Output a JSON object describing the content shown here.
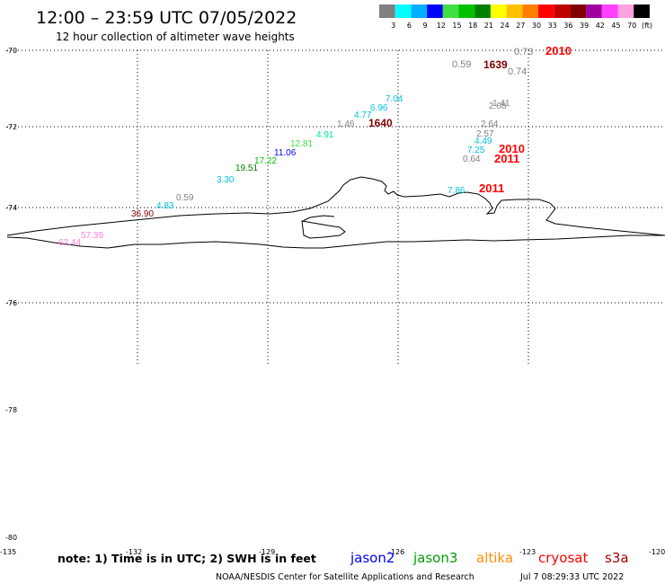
{
  "header": {
    "title": "12:00 – 23:59 UTC 07/05/2022",
    "subtitle": "12 hour collection of altimeter wave heights"
  },
  "colorbar": {
    "unit": "(ft)",
    "bins": [
      {
        "label": "3",
        "color": "#808080"
      },
      {
        "label": "6",
        "color": "#00ffff"
      },
      {
        "label": "9",
        "color": "#00b0ff"
      },
      {
        "label": "12",
        "color": "#0000ff"
      },
      {
        "label": "15",
        "color": "#40e040"
      },
      {
        "label": "18",
        "color": "#00c000"
      },
      {
        "label": "21",
        "color": "#008000"
      },
      {
        "label": "24",
        "color": "#ffff00"
      },
      {
        "label": "27",
        "color": "#ffc000"
      },
      {
        "label": "30",
        "color": "#ff8000"
      },
      {
        "label": "33",
        "color": "#ff0000"
      },
      {
        "label": "36",
        "color": "#c00000"
      },
      {
        "label": "39",
        "color": "#800000"
      },
      {
        "label": "42",
        "color": "#a000a0"
      },
      {
        "label": "45",
        "color": "#ff40ff"
      },
      {
        "label": "70",
        "color": "#ffa0e0"
      },
      {
        "label": "",
        "color": "#000000"
      }
    ]
  },
  "axes": {
    "lat_labels": [
      "-70",
      "-72",
      "-74",
      "-76",
      "-78",
      "-80"
    ],
    "lon_labels": [
      "-135",
      "-132",
      "-129",
      "-126",
      "-123",
      "-120"
    ]
  },
  "wave_labels": [
    {
      "text": "0.73",
      "color": "#808080"
    },
    {
      "text": "2010",
      "color": "#ff0000"
    },
    {
      "text": "0.59",
      "color": "#808080"
    },
    {
      "text": "1639",
      "color": "#800000"
    },
    {
      "text": "0.74",
      "color": "#808080"
    },
    {
      "text": "7.04",
      "color": "#00c0e0"
    },
    {
      "text": "6.96",
      "color": "#00c0e0"
    },
    {
      "text": "4.77",
      "color": "#00c0e0"
    },
    {
      "text": "1.46",
      "color": "#808080"
    },
    {
      "text": "1640",
      "color": "#800000"
    },
    {
      "text": "1.41",
      "color": "#808080"
    },
    {
      "text": "2.08",
      "color": "#808080"
    },
    {
      "text": "2.64",
      "color": "#808080"
    },
    {
      "text": "2.57",
      "color": "#808080"
    },
    {
      "text": "4.49",
      "color": "#00c0e0"
    },
    {
      "text": "7.25",
      "color": "#00c0e0"
    },
    {
      "text": "2010",
      "color": "#ff0000"
    },
    {
      "text": "0.64",
      "color": "#808080"
    },
    {
      "text": "2011",
      "color": "#ff0000"
    },
    {
      "text": "4.91",
      "color": "#00e0a0"
    },
    {
      "text": "12.81",
      "color": "#40e040"
    },
    {
      "text": "11.06",
      "color": "#0000ff"
    },
    {
      "text": "17.22",
      "color": "#00c000"
    },
    {
      "text": "19.51",
      "color": "#008000"
    },
    {
      "text": "3.30",
      "color": "#00c0e0"
    },
    {
      "text": "7.86",
      "color": "#00c0e0"
    },
    {
      "text": "2011",
      "color": "#ff0000"
    },
    {
      "text": "0.59",
      "color": "#808080"
    },
    {
      "text": "4.83",
      "color": "#00c0e0"
    },
    {
      "text": "36.90",
      "color": "#800000"
    },
    {
      "text": "57.39",
      "color": "#ff80e0"
    },
    {
      "text": "62.44",
      "color": "#ff80e0"
    }
  ],
  "footer": {
    "note": "note: 1) Time is in UTC; 2) SWH is in feet",
    "satellites": [
      {
        "name": "jason2",
        "color": "#0000ff"
      },
      {
        "name": "jason3",
        "color": "#00a000"
      },
      {
        "name": "altika",
        "color": "#ff9000"
      },
      {
        "name": "cryosat",
        "color": "#ff0000"
      },
      {
        "name": "s3a",
        "color": "#a00000"
      }
    ],
    "credit": "NOAA/NESDIS Center for Satellite Applications and Research",
    "timestamp": "Jul  7 08:29:33 UTC 2022"
  }
}
